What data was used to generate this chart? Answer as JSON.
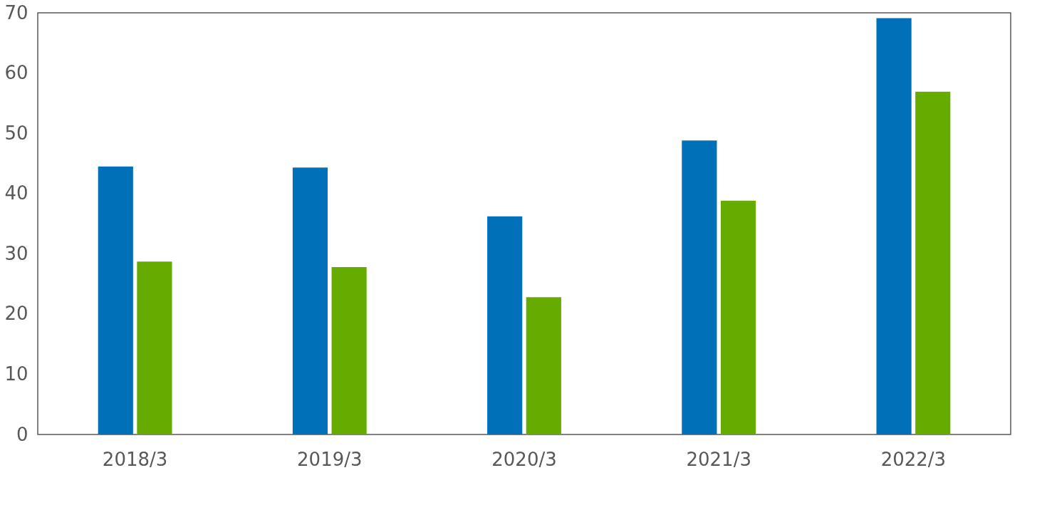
{
  "chart_data": {
    "type": "bar",
    "categories": [
      "2018/3",
      "2019/3",
      "2020/3",
      "2021/3",
      "2022/3"
    ],
    "series": [
      {
        "color": "#0070b8",
        "values": [
          44.5,
          44.3,
          36.2,
          48.8,
          69.1
        ]
      },
      {
        "color": "#66ac00",
        "values": [
          28.7,
          27.8,
          22.8,
          38.8,
          56.9
        ]
      }
    ],
    "ylim": [
      0,
      70
    ],
    "yticks": [
      0,
      10,
      20,
      30,
      40,
      50,
      60,
      70
    ],
    "grid": false,
    "legend": false
  }
}
